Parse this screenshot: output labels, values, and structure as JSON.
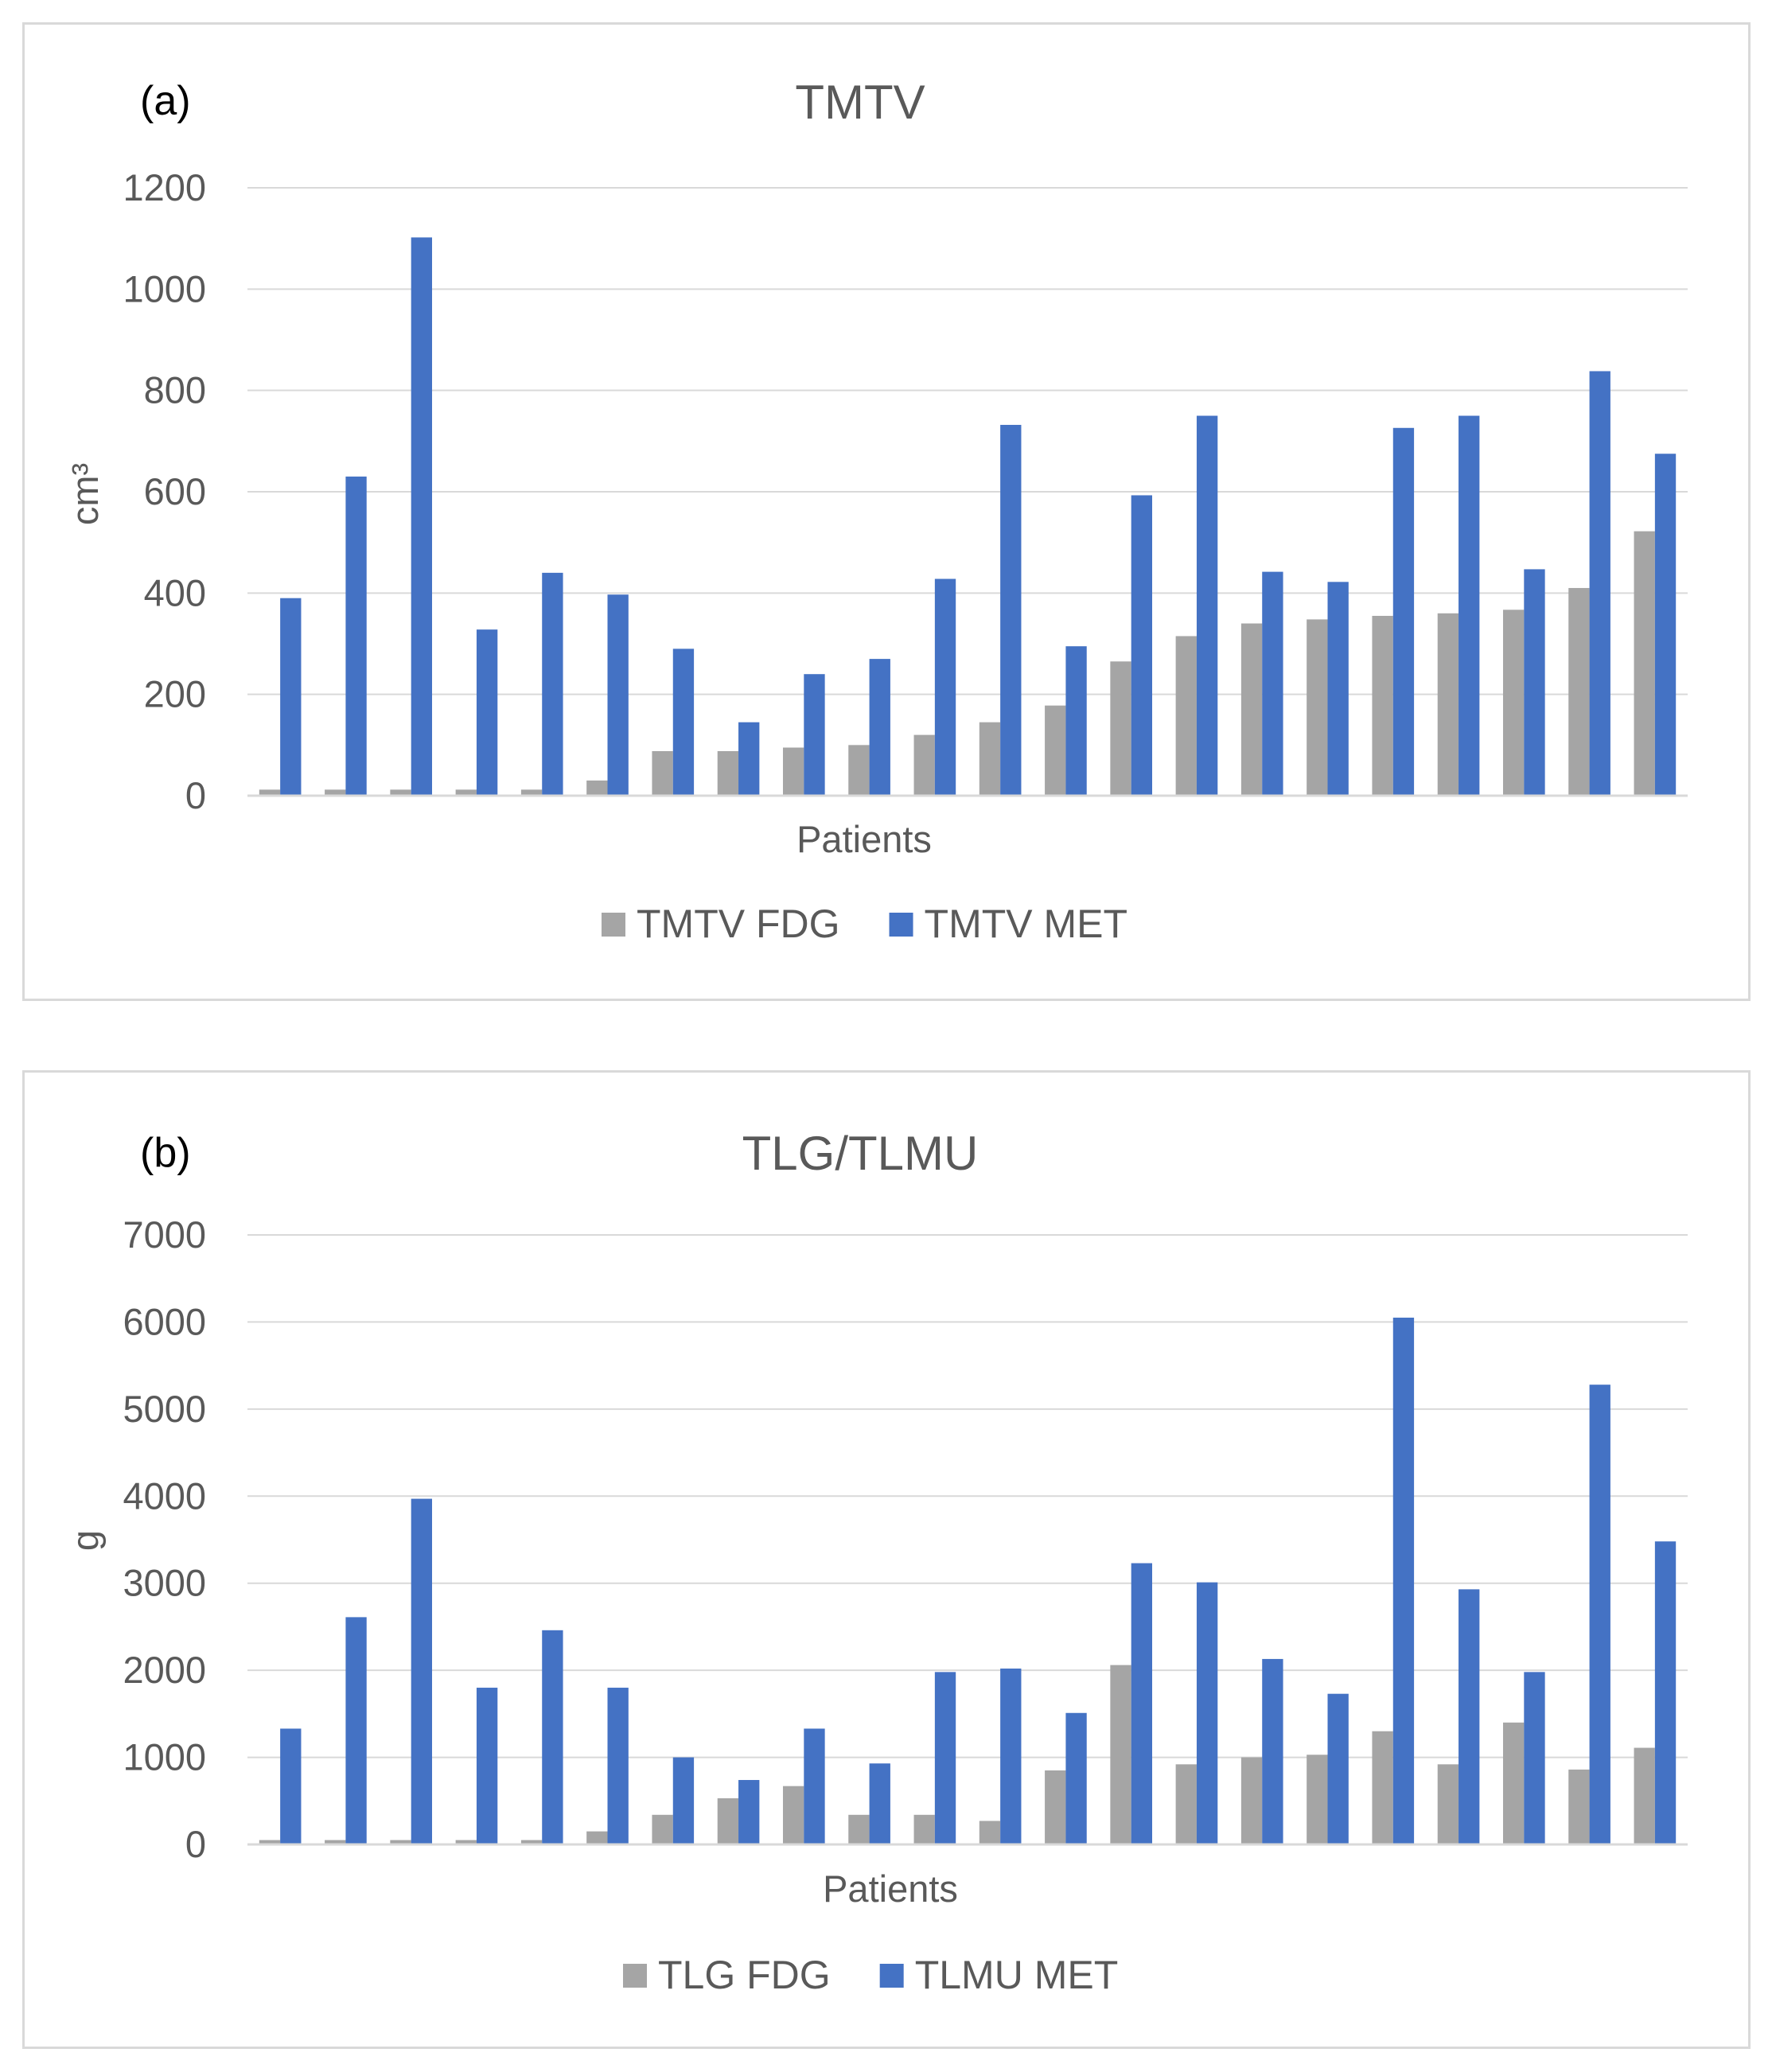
{
  "chart_data": [
    {
      "type": "bar",
      "panel_label": "(a)",
      "title": "TMTV",
      "xlabel": "Patients",
      "ylabel": "cm³",
      "ylim": [
        0,
        1200
      ],
      "yticks": [
        0,
        200,
        400,
        600,
        800,
        1000,
        1200
      ],
      "grid": true,
      "legend_position": "bottom",
      "series": [
        {
          "name": "TMTV FDG",
          "color": "#a5a5a5",
          "values": [
            12,
            12,
            12,
            12,
            12,
            30,
            88,
            88,
            95,
            100,
            120,
            145,
            178,
            265,
            315,
            340,
            348,
            355,
            360,
            367,
            410,
            522
          ]
        },
        {
          "name": "TMTV MET",
          "color": "#4472c4",
          "values": [
            390,
            630,
            1102,
            328,
            440,
            397,
            290,
            145,
            240,
            270,
            428,
            732,
            295,
            593,
            750,
            442,
            422,
            726,
            750,
            447,
            838,
            675
          ]
        }
      ]
    },
    {
      "type": "bar",
      "panel_label": "(b)",
      "title": "TLG/TLMU",
      "xlabel": "Patients",
      "ylabel": "g",
      "ylim": [
        0,
        7000
      ],
      "yticks": [
        0,
        1000,
        2000,
        3000,
        4000,
        5000,
        6000,
        7000
      ],
      "grid": true,
      "legend_position": "bottom",
      "series": [
        {
          "name": "TLG FDG",
          "color": "#a5a5a5",
          "values": [
            50,
            50,
            50,
            50,
            50,
            150,
            340,
            530,
            670,
            340,
            340,
            270,
            850,
            2060,
            920,
            1000,
            1030,
            1300,
            920,
            1400,
            860,
            1110
          ]
        },
        {
          "name": "TLMU MET",
          "color": "#4472c4",
          "values": [
            1330,
            2610,
            3970,
            1800,
            2460,
            1800,
            1000,
            740,
            1330,
            930,
            1980,
            2020,
            1510,
            3230,
            3010,
            2130,
            1730,
            6050,
            2930,
            1980,
            5280,
            3480
          ]
        }
      ]
    }
  ]
}
